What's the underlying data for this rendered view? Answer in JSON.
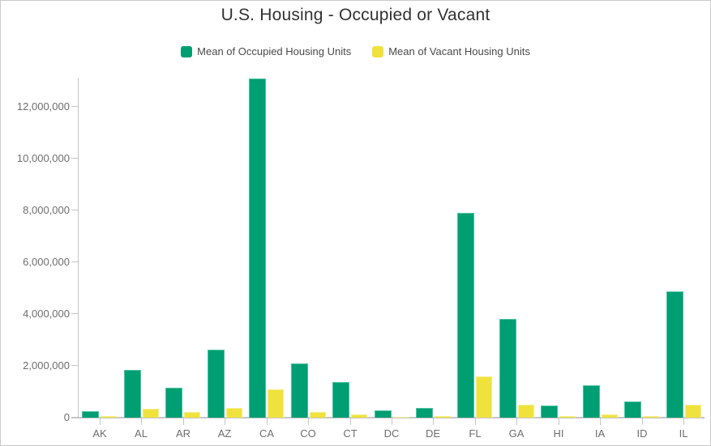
{
  "window": {
    "title": "U.S. Housing - Occupied or Vacant"
  },
  "chart_data": {
    "type": "bar",
    "title": "U.S. Housing - Occupied or Vacant",
    "categories": [
      "AK",
      "AL",
      "AR",
      "AZ",
      "CA",
      "CO",
      "CT",
      "DC",
      "DE",
      "FL",
      "GA",
      "HI",
      "IA",
      "ID",
      "IL"
    ],
    "series": [
      {
        "name": "Mean of Occupied Housing Units",
        "color": "#009e73",
        "border_color": "#4cc3a0",
        "values": [
          260000,
          1850000,
          1160000,
          2620000,
          13080000,
          2100000,
          1380000,
          280000,
          360000,
          7920000,
          3800000,
          460000,
          1250000,
          630000,
          4880000
        ]
      },
      {
        "name": "Mean of Vacant Housing Units",
        "color": "#efe23d",
        "border_color": "#f5ee8c",
        "values": [
          75000,
          350000,
          210000,
          370000,
          1090000,
          230000,
          135000,
          30000,
          65000,
          1600000,
          490000,
          70000,
          125000,
          70000,
          490000
        ]
      }
    ],
    "xlabel": "",
    "ylabel": "",
    "ylim": [
      0,
      13125000
    ],
    "y_tick_interval": 2000000,
    "y_tick_labels": [
      "0",
      "2,000,000",
      "4,000,000",
      "6,000,000",
      "8,000,000",
      "10,000,000",
      "12,000,000"
    ],
    "legend_position": "top",
    "grid": "off"
  },
  "colors": {
    "title_text": "#323232",
    "axis_text": "#6e6e6e",
    "legend_text": "#4a4a4a",
    "axis_line": "#c6c6c6",
    "frame_border": "#c9c9c9",
    "background": "#ffffff"
  }
}
